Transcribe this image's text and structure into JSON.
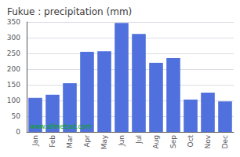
{
  "chart_data": {
    "type": "bar",
    "title": "Fukue : precipitation (mm)",
    "categories": [
      "Jan",
      "Feb",
      "Mar",
      "Apr",
      "May",
      "Jun",
      "Jul",
      "Aug",
      "Sep",
      "Oct",
      "Nov",
      "Dec"
    ],
    "values": [
      108,
      118,
      155,
      255,
      257,
      347,
      312,
      220,
      235,
      103,
      125,
      97
    ],
    "ylim": [
      0,
      350
    ],
    "yticks": [
      0,
      50,
      100,
      150,
      200,
      250,
      300,
      350
    ],
    "grid": true,
    "annotation": "www.allmetsat.com"
  }
}
